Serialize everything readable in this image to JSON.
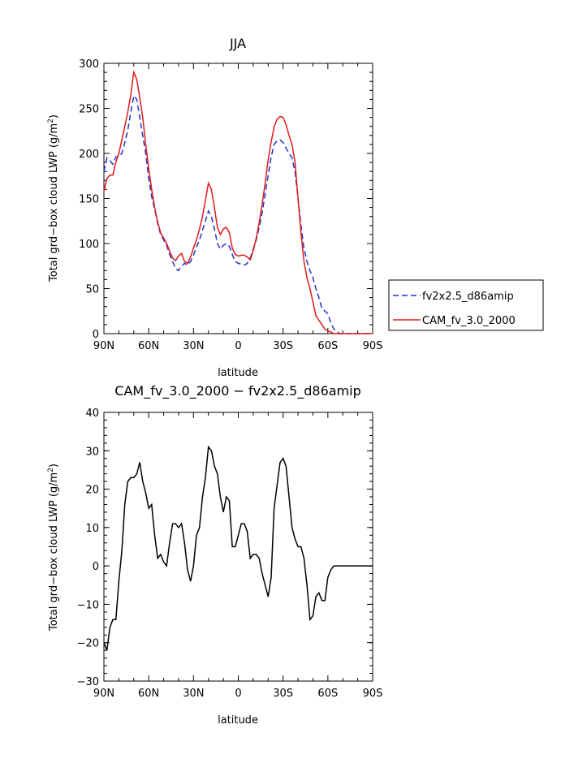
{
  "chart_data": [
    {
      "type": "line",
      "title": "JJA",
      "xlabel": "latitude",
      "ylabel": "Total grd-box cloud LWP (g/m²)",
      "x_categories": [
        "90N",
        "60N",
        "30N",
        "0",
        "30S",
        "60S",
        "90S"
      ],
      "xlim": [
        90,
        -90
      ],
      "ylim": [
        0,
        300
      ],
      "y_ticks": [
        0,
        50,
        100,
        150,
        200,
        250,
        300
      ],
      "legend_position": "right",
      "series": [
        {
          "name": "fv2x2.5_d86amip",
          "color": "#2233cc",
          "dash": "dashed",
          "x": [
            90,
            88,
            86,
            84,
            82,
            80,
            78,
            76,
            74,
            72,
            70,
            68,
            66,
            64,
            62,
            60,
            58,
            56,
            54,
            52,
            50,
            48,
            46,
            44,
            42,
            40,
            38,
            36,
            34,
            32,
            30,
            28,
            26,
            24,
            22,
            20,
            18,
            16,
            14,
            12,
            10,
            8,
            6,
            4,
            2,
            0,
            -2,
            -4,
            -6,
            -8,
            -10,
            -12,
            -14,
            -16,
            -18,
            -20,
            -22,
            -24,
            -26,
            -28,
            -30,
            -32,
            -34,
            -36,
            -38,
            -40,
            -42,
            -44,
            -46,
            -48,
            -50,
            -52,
            -54,
            -56,
            -58,
            -60,
            -62,
            -64,
            -66,
            -68,
            -70,
            -72,
            -74,
            -76,
            -78,
            -80,
            -82,
            -84,
            -86,
            -88,
            -90
          ],
          "y": [
            180,
            195,
            192,
            188,
            196,
            197,
            200,
            212,
            226,
            246,
            264,
            260,
            240,
            220,
            200,
            172,
            152,
            138,
            122,
            110,
            104,
            98,
            88,
            80,
            72,
            70,
            75,
            78,
            76,
            80,
            87,
            96,
            104,
            115,
            125,
            136,
            130,
            116,
            100,
            94,
            98,
            100,
            97,
            88,
            80,
            78,
            77,
            76,
            78,
            84,
            94,
            104,
            118,
            134,
            155,
            176,
            196,
            210,
            214,
            215,
            212,
            206,
            200,
            195,
            180,
            150,
            120,
            95,
            80,
            70,
            62,
            50,
            40,
            28,
            25,
            22,
            12,
            5,
            2,
            0,
            0,
            0,
            0,
            0,
            0,
            0,
            0,
            0,
            0,
            0,
            0
          ],
          "note_values_truncated": false
        },
        {
          "name": "CAM_fv_3.0_2000",
          "color": "#e01a1a",
          "dash": "solid",
          "x": [
            90,
            88,
            86,
            84,
            82,
            80,
            78,
            76,
            74,
            72,
            70,
            68,
            66,
            64,
            62,
            60,
            58,
            56,
            54,
            52,
            50,
            48,
            46,
            44,
            42,
            40,
            38,
            36,
            34,
            32,
            30,
            28,
            26,
            24,
            22,
            20,
            18,
            16,
            14,
            12,
            10,
            8,
            6,
            4,
            2,
            0,
            -2,
            -4,
            -6,
            -8,
            -10,
            -12,
            -14,
            -16,
            -18,
            -20,
            -22,
            -24,
            -26,
            -28,
            -30,
            -32,
            -34,
            -36,
            -38,
            -40,
            -42,
            -44,
            -46,
            -48,
            -50,
            -52,
            -54,
            -56,
            -58,
            -60,
            -62,
            -64,
            -66,
            -68,
            -70,
            -72,
            -74,
            -76,
            -78,
            -80,
            -82,
            -84,
            -86,
            -88,
            -90
          ],
          "y": [
            158,
            172,
            176,
            176,
            190,
            200,
            215,
            230,
            246,
            265,
            290,
            282,
            262,
            240,
            210,
            183,
            160,
            140,
            124,
            112,
            106,
            100,
            92,
            84,
            81,
            86,
            89,
            80,
            78,
            85,
            95,
            104,
            116,
            130,
            148,
            167,
            160,
            140,
            118,
            110,
            116,
            118,
            112,
            95,
            88,
            86,
            87,
            87,
            85,
            82,
            92,
            106,
            123,
            144,
            167,
            193,
            213,
            229,
            238,
            241,
            240,
            232,
            220,
            210,
            190,
            150,
            112,
            80,
            62,
            50,
            35,
            20,
            15,
            10,
            5,
            3,
            2,
            0,
            0,
            0,
            0,
            0,
            0,
            0,
            0,
            0,
            0,
            0,
            0,
            0,
            0
          ]
        }
      ]
    },
    {
      "type": "line",
      "title": "CAM_fv_3.0_2000 − fv2x2.5_d86amip",
      "xlabel": "latitude",
      "ylabel": "Total grd-box cloud LWP (g/m²)",
      "x_categories": [
        "90N",
        "60N",
        "30N",
        "0",
        "30S",
        "60S",
        "90S"
      ],
      "xlim": [
        90,
        -90
      ],
      "ylim": [
        -30,
        40
      ],
      "y_ticks": [
        -30,
        -20,
        -10,
        0,
        10,
        20,
        30,
        40
      ],
      "series": [
        {
          "color": "#000000",
          "dash": "solid",
          "x": [
            90,
            88,
            86,
            84,
            82,
            80,
            78,
            76,
            74,
            72,
            70,
            68,
            66,
            64,
            62,
            60,
            58,
            56,
            54,
            52,
            50,
            48,
            46,
            44,
            42,
            40,
            38,
            36,
            34,
            32,
            30,
            28,
            26,
            24,
            22,
            20,
            18,
            16,
            14,
            12,
            10,
            8,
            6,
            4,
            2,
            0,
            -2,
            -4,
            -6,
            -8,
            -10,
            -12,
            -14,
            -16,
            -18,
            -20,
            -22,
            -24,
            -26,
            -28,
            -30,
            -32,
            -34,
            -36,
            -38,
            -40,
            -42,
            -44,
            -46,
            -48,
            -50,
            -52,
            -54,
            -56,
            -58,
            -60,
            -62,
            -64,
            -66,
            -68,
            -70,
            -72,
            -74,
            -76,
            -78,
            -80,
            -82,
            -84,
            -86,
            -88,
            -90
          ],
          "y": [
            -20,
            -22,
            -16,
            -14,
            -14,
            -4,
            4,
            16,
            22,
            23,
            23,
            24,
            27,
            22,
            19,
            15,
            16,
            8,
            2,
            3,
            1,
            0,
            6,
            11,
            11,
            10,
            11,
            6,
            -1,
            -4,
            0,
            8,
            10,
            18,
            23,
            31,
            30,
            26,
            24,
            18,
            14,
            18,
            17,
            5,
            5,
            8,
            11,
            11,
            9,
            2,
            3,
            3,
            2,
            -2,
            -5,
            -8,
            -3,
            15,
            21,
            27,
            28,
            26,
            18,
            10,
            7,
            5,
            5,
            2,
            -5,
            -14,
            -13,
            -8,
            -7,
            -9,
            -9,
            -3,
            -1,
            0,
            0,
            0,
            0,
            0,
            0,
            0,
            0,
            0,
            0,
            0,
            0,
            0,
            0
          ]
        }
      ]
    }
  ],
  "plot1": {
    "title": "JJA",
    "xlabel": "latitude",
    "ylabel_main": "Total grd−box cloud LWP (g/m",
    "ylabel_sup": "2",
    "ylabel_close": ")",
    "legend": [
      "fv2x2.5_d86amip",
      "CAM_fv_3.0_2000"
    ]
  },
  "plot2": {
    "title": "CAM_fv_3.0_2000 − fv2x2.5_d86amip",
    "xlabel": "latitude",
    "ylabel_main": "Total grd−box cloud LWP (g/m",
    "ylabel_sup": "2",
    "ylabel_close": ")"
  }
}
